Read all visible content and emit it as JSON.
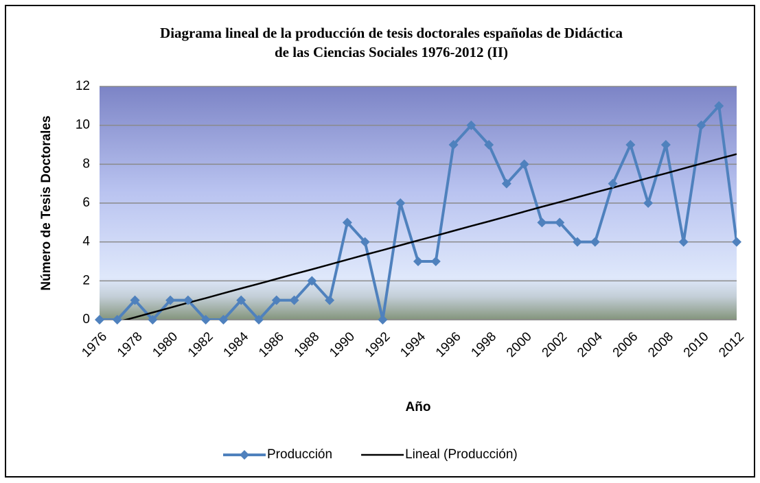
{
  "chart_data": {
    "type": "line",
    "title": [
      "Diagrama lineal de la producción de tesis doctorales españolas de Didáctica",
      "de las Ciencias Sociales 1976-2012 (II)"
    ],
    "xlabel": "Año",
    "ylabel": "Número de Tesis Doctorales",
    "categories": [
      "1976",
      null,
      "1978",
      null,
      "1980",
      null,
      "1982",
      null,
      "1984",
      null,
      "1986",
      null,
      "1988",
      null,
      "1990",
      null,
      "1992",
      null,
      "1994",
      null,
      "1996",
      null,
      "1998",
      null,
      "2000",
      null,
      "2002",
      null,
      "2004",
      null,
      "2006",
      null,
      "2008",
      null,
      "2010",
      null,
      "2012"
    ],
    "series": [
      {
        "name": "Producción",
        "color": "#4f81bd",
        "marker": "diamond",
        "values": [
          0,
          0,
          1,
          0,
          1,
          1,
          0,
          0,
          1,
          0,
          1,
          1,
          2,
          1,
          5,
          4,
          0,
          6,
          3,
          3,
          9,
          10,
          9,
          7,
          8,
          5,
          5,
          4,
          4,
          7,
          9,
          6,
          9,
          4,
          10,
          11,
          4
        ]
      },
      {
        "name": "Lineal (Producción)",
        "color": "#000000",
        "marker": "none",
        "values": [
          -0.37,
          -0.12,
          0.12,
          0.37,
          0.62,
          0.87,
          1.11,
          1.36,
          1.61,
          1.85,
          2.1,
          2.35,
          2.59,
          2.84,
          3.09,
          3.34,
          3.58,
          3.83,
          4.08,
          4.32,
          4.57,
          4.82,
          5.06,
          5.31,
          5.56,
          5.81,
          6.05,
          6.3,
          6.55,
          6.79,
          7.04,
          7.29,
          7.53,
          7.78,
          8.03,
          8.28,
          8.52
        ]
      }
    ],
    "ylim": [
      0,
      12
    ],
    "yticks": [
      0,
      2,
      4,
      6,
      8,
      10,
      12
    ],
    "grid": true,
    "legend": "bottom"
  }
}
